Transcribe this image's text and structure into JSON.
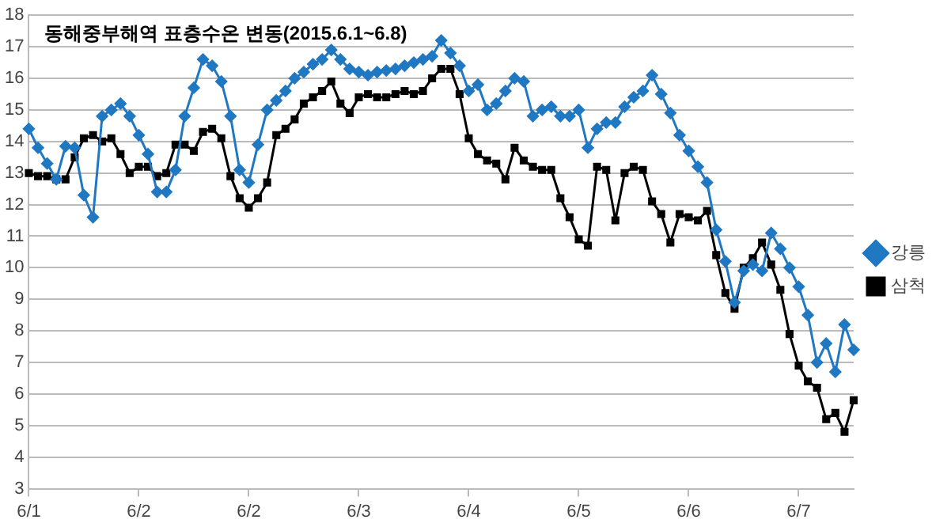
{
  "chart_data": {
    "type": "line",
    "title": "동해중부해역 표층수온 변동(2015.6.1~6.8)",
    "categories": [
      "6/1",
      null,
      null,
      null,
      null,
      null,
      null,
      null,
      null,
      null,
      null,
      null,
      "6/2",
      null,
      null,
      null,
      null,
      null,
      null,
      null,
      null,
      null,
      null,
      null,
      "6/2",
      null,
      null,
      null,
      null,
      null,
      null,
      null,
      null,
      null,
      null,
      null,
      "6/3",
      null,
      null,
      null,
      null,
      null,
      null,
      null,
      null,
      null,
      null,
      null,
      "6/4",
      null,
      null,
      null,
      null,
      null,
      null,
      null,
      null,
      null,
      null,
      null,
      "6/5",
      null,
      null,
      null,
      null,
      null,
      null,
      null,
      null,
      null,
      null,
      null,
      "6/6",
      null,
      null,
      null,
      null,
      null,
      null,
      null,
      null,
      null,
      null,
      null,
      "6/7",
      null,
      null,
      null,
      null,
      null,
      null
    ],
    "ylim": [
      3,
      18
    ],
    "yticks": [
      3,
      4,
      5,
      6,
      7,
      8,
      9,
      10,
      11,
      12,
      13,
      14,
      15,
      16,
      17,
      18
    ],
    "grid": "y",
    "legend": "right",
    "line_style": "solid",
    "series": [
      {
        "name": "강릉",
        "color": "#1f78c1",
        "marker": "diamond",
        "values": [
          14.4,
          13.8,
          13.3,
          12.8,
          13.85,
          13.8,
          12.3,
          11.6,
          14.8,
          15.0,
          15.2,
          14.8,
          14.2,
          13.6,
          12.4,
          12.4,
          13.1,
          14.8,
          15.7,
          16.6,
          16.4,
          15.9,
          14.8,
          13.1,
          12.7,
          13.9,
          15.0,
          15.3,
          15.6,
          16.0,
          16.2,
          16.45,
          16.6,
          16.9,
          16.6,
          16.3,
          16.2,
          16.1,
          16.2,
          16.25,
          16.3,
          16.4,
          16.5,
          16.6,
          16.7,
          17.2,
          16.8,
          16.4,
          15.6,
          15.8,
          15.0,
          15.2,
          15.6,
          16.0,
          15.9,
          14.8,
          15.0,
          15.1,
          14.8,
          14.8,
          15.0,
          13.8,
          14.4,
          14.6,
          14.6,
          15.1,
          15.4,
          15.6,
          16.1,
          15.5,
          14.9,
          14.2,
          13.7,
          13.2,
          12.7,
          11.2,
          10.2,
          8.9,
          9.9,
          10.1,
          9.9,
          11.1,
          10.6,
          10.0,
          9.4,
          8.5,
          7.0,
          7.6,
          6.7,
          8.2,
          7.4
        ]
      },
      {
        "name": "삼척",
        "color": "#000000",
        "marker": "square",
        "values": [
          13.0,
          12.9,
          12.9,
          12.8,
          12.8,
          13.5,
          14.1,
          14.2,
          14.0,
          14.1,
          13.6,
          13.0,
          13.2,
          13.2,
          12.9,
          13.0,
          13.9,
          13.9,
          13.7,
          14.3,
          14.4,
          14.1,
          12.9,
          12.2,
          11.9,
          12.2,
          12.7,
          14.2,
          14.4,
          14.7,
          15.2,
          15.4,
          15.6,
          15.9,
          15.2,
          14.9,
          15.4,
          15.5,
          15.4,
          15.4,
          15.5,
          15.6,
          15.5,
          15.6,
          16.0,
          16.3,
          16.3,
          15.5,
          14.1,
          13.6,
          13.4,
          13.3,
          12.8,
          13.8,
          13.4,
          13.2,
          13.1,
          13.1,
          12.2,
          11.6,
          10.9,
          10.7,
          13.2,
          13.1,
          11.5,
          13.0,
          13.2,
          13.1,
          12.1,
          11.7,
          10.8,
          11.7,
          11.6,
          11.5,
          11.8,
          10.4,
          9.2,
          8.7,
          10.0,
          10.3,
          10.8,
          10.1,
          9.3,
          7.9,
          6.9,
          6.4,
          6.2,
          5.2,
          5.4,
          4.8,
          5.8
        ]
      }
    ]
  }
}
